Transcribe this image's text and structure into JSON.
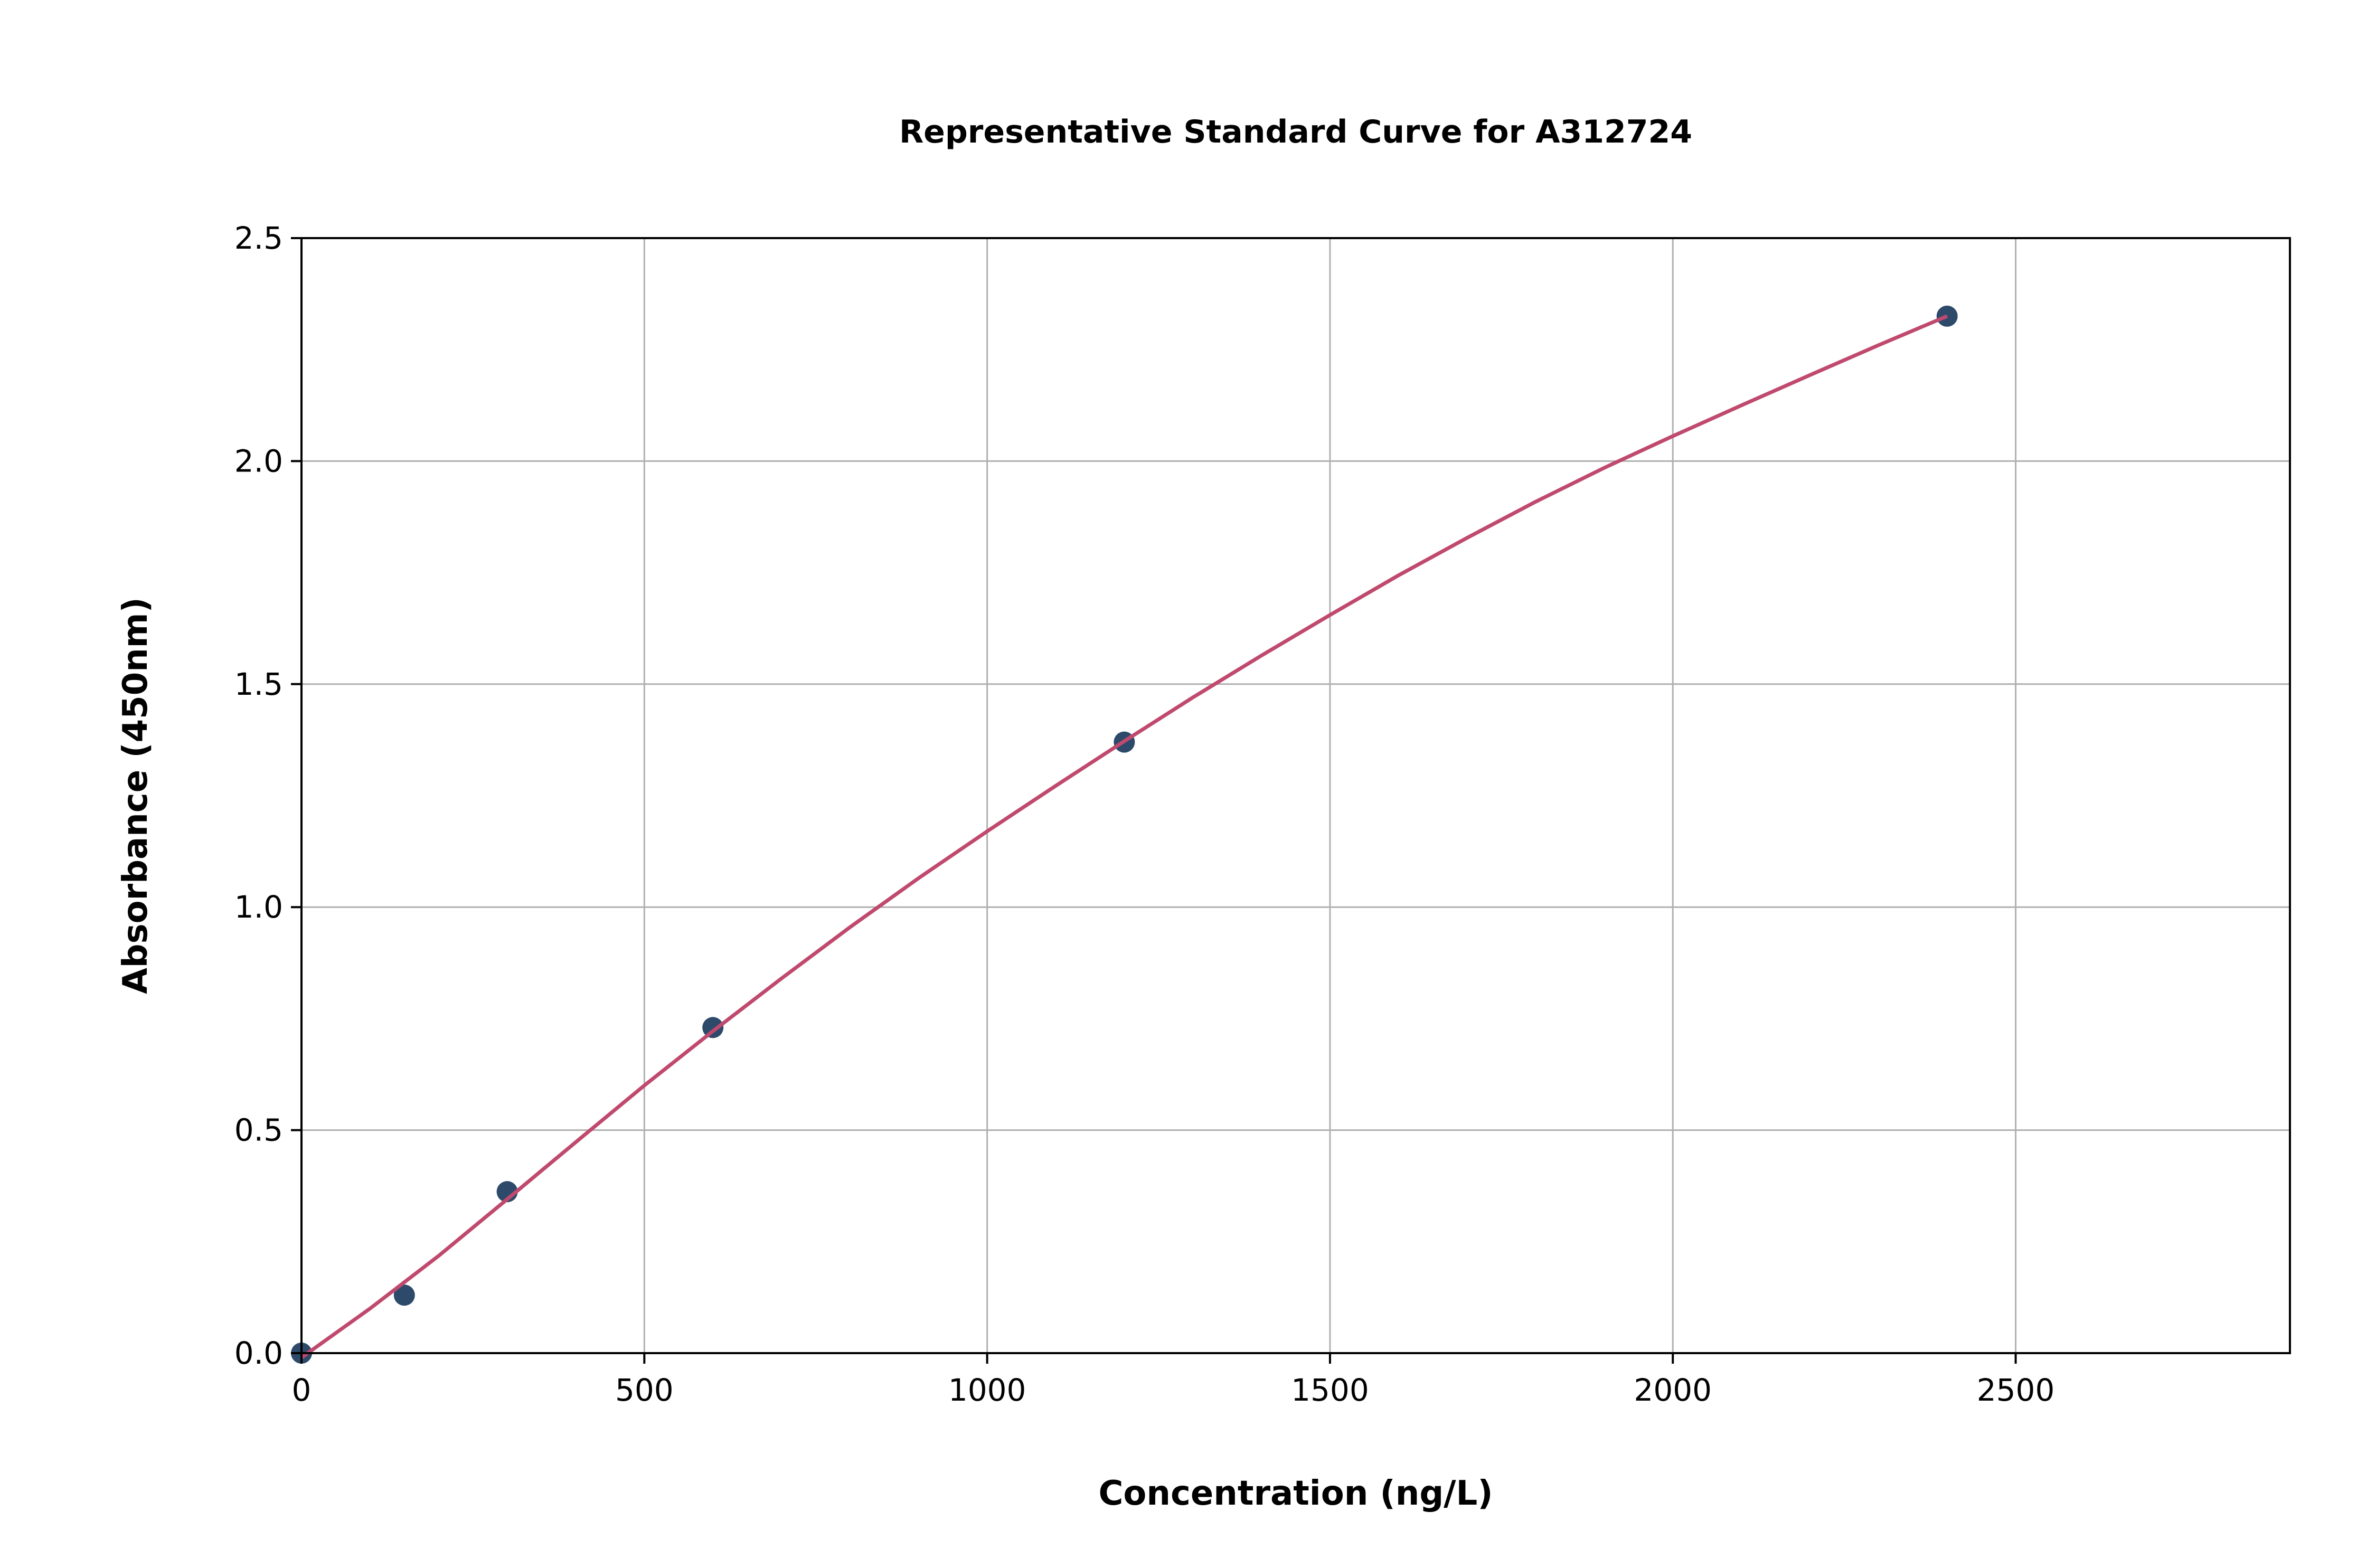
{
  "chart_data": {
    "type": "scatter",
    "title": "Representative Standard Curve for A312724",
    "xlabel": "Concentration (ng/L)",
    "ylabel": "Absorbance (450nm)",
    "xlim": [
      0,
      2900
    ],
    "ylim": [
      0,
      2.5
    ],
    "xticks": [
      0,
      500,
      1000,
      1500,
      2000,
      2500
    ],
    "xtick_labels": [
      "0",
      "500",
      "1000",
      "1500",
      "2000",
      "2500"
    ],
    "yticks": [
      0,
      0.5,
      1.0,
      1.5,
      2.0,
      2.5
    ],
    "ytick_labels": [
      "0.0",
      "0.5",
      "1.0",
      "1.5",
      "2.0",
      "2.5"
    ],
    "grid": true,
    "series": [
      {
        "name": "standards",
        "kind": "points",
        "color": "#2d4a6b",
        "x": [
          0,
          150,
          300,
          600,
          1200,
          2400
        ],
        "y": [
          0.0,
          0.13,
          0.362,
          0.73,
          1.37,
          2.325
        ]
      },
      {
        "name": "fit",
        "kind": "line",
        "color": "#c0496e",
        "x": [
          0,
          100,
          200,
          300,
          400,
          500,
          600,
          700,
          800,
          900,
          1000,
          1100,
          1200,
          1300,
          1400,
          1500,
          1600,
          1700,
          1800,
          1900,
          2000,
          2100,
          2200,
          2300,
          2400
        ],
        "y": [
          -0.01,
          0.1,
          0.218,
          0.345,
          0.473,
          0.6,
          0.722,
          0.84,
          0.955,
          1.065,
          1.17,
          1.272,
          1.372,
          1.47,
          1.564,
          1.655,
          1.744,
          1.828,
          1.909,
          1.985,
          2.056,
          2.125,
          2.193,
          2.26,
          2.325
        ]
      }
    ]
  }
}
